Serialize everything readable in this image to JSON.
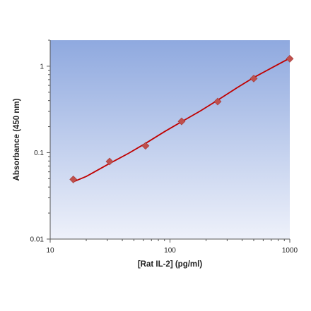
{
  "chart_data": {
    "type": "scatter",
    "xlabel": "[Rat IL-2] (pg/ml)",
    "ylabel": "Absorbance (450 nm)",
    "x_scale": "log",
    "y_scale": "log",
    "xlim": [
      10,
      1000
    ],
    "ylim": [
      0.01,
      2
    ],
    "x_ticks": [
      10,
      100,
      1000
    ],
    "x_tick_labels": [
      "10",
      "100",
      "1000"
    ],
    "y_ticks": [
      0.01,
      0.1,
      1
    ],
    "y_tick_labels": [
      "0.01",
      "0.1",
      "1"
    ],
    "grid": false,
    "legend": "none",
    "series": [
      {
        "points": [
          {
            "x": 15.6,
            "y": 0.049
          },
          {
            "x": 31.3,
            "y": 0.079
          },
          {
            "x": 62.5,
            "y": 0.12
          },
          {
            "x": 125,
            "y": 0.23
          },
          {
            "x": 250,
            "y": 0.39
          },
          {
            "x": 500,
            "y": 0.72
          },
          {
            "x": 1000,
            "y": 1.22
          }
        ],
        "marker": "diamond",
        "color": "#c0504d"
      }
    ],
    "fit_curve": {
      "color": "#c00000",
      "points": [
        {
          "x": 15.6,
          "y": 0.046
        },
        {
          "x": 20,
          "y": 0.053
        },
        {
          "x": 31.3,
          "y": 0.075
        },
        {
          "x": 45,
          "y": 0.098
        },
        {
          "x": 62.5,
          "y": 0.128
        },
        {
          "x": 90,
          "y": 0.175
        },
        {
          "x": 125,
          "y": 0.228
        },
        {
          "x": 180,
          "y": 0.305
        },
        {
          "x": 250,
          "y": 0.405
        },
        {
          "x": 360,
          "y": 0.56
        },
        {
          "x": 500,
          "y": 0.74
        },
        {
          "x": 700,
          "y": 0.95
        },
        {
          "x": 1000,
          "y": 1.24
        }
      ]
    },
    "colors": {
      "plot_bg_top": "#8fa9df",
      "plot_bg_bottom": "#eef1fa",
      "axis": "#555555"
    }
  }
}
